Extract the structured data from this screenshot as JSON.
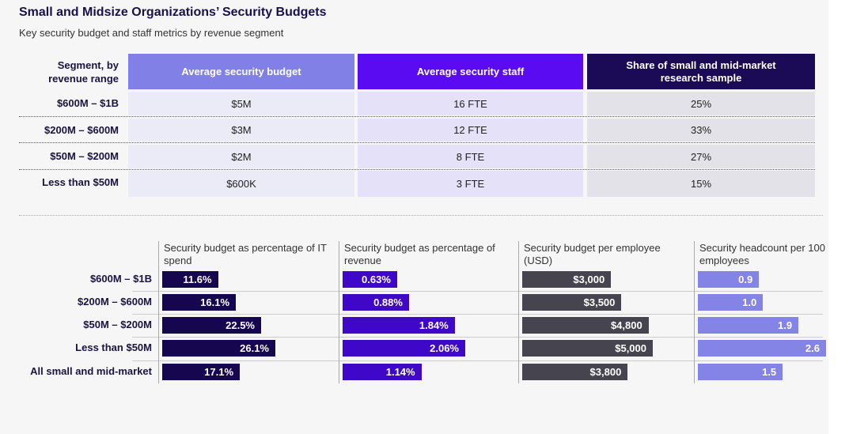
{
  "title": "Small and Midsize Organizations’ Security Budgets",
  "subtitle": "Key security budget and staff metrics by revenue segment",
  "colors": {
    "budget": "#8080e6",
    "staff": "#5a0bf2",
    "share": "#1b0a55",
    "it": "#160650",
    "rev": "#3f08c8",
    "emp": "#46444f",
    "head": "#8484e6"
  },
  "table": {
    "segment_header": "Segment, by revenue range",
    "headers": [
      "Average security budget",
      "Average security staff",
      "Share of small and mid-market research sample"
    ],
    "rows": [
      {
        "segment": "$600M – $1B",
        "budget": "$5M",
        "staff": "16 FTE",
        "share": "25%"
      },
      {
        "segment": "$200M – $600M",
        "budget": "$3M",
        "staff": "12 FTE",
        "share": "33%"
      },
      {
        "segment": "$50M – $200M",
        "budget": "$2M",
        "staff": "8 FTE",
        "share": "27%"
      },
      {
        "segment": "Less than $50M",
        "budget": "$600K",
        "staff": "3 FTE",
        "share": "15%"
      }
    ]
  },
  "chart_data": {
    "type": "bar",
    "orientation": "horizontal",
    "categories": [
      "$600M – $1B",
      "$200M – $600M",
      "$50M – $200M",
      "Less than $50M",
      "All small and mid-market"
    ],
    "series": [
      {
        "name": "Security budget as percentage of IT spend",
        "values": [
          11.6,
          16.1,
          22.5,
          26.1,
          17.1
        ],
        "labels": [
          "11.6%",
          "16.1%",
          "22.5%",
          "26.1%",
          "17.1%"
        ]
      },
      {
        "name": "Security budget as percentage of revenue",
        "values": [
          0.63,
          0.88,
          1.84,
          2.06,
          1.14
        ],
        "labels": [
          "0.63%",
          "0.88%",
          "1.84%",
          "2.06%",
          "1.14%"
        ]
      },
      {
        "name": "Security budget per employee (USD)",
        "values": [
          3000,
          3500,
          4800,
          5000,
          3800
        ],
        "labels": [
          "$3,000",
          "$3,500",
          "$4,800",
          "$5,000",
          "$3,800"
        ]
      },
      {
        "name": "Security headcount per 100 employees",
        "values": [
          0.9,
          1.0,
          1.9,
          2.6,
          1.5
        ],
        "labels": [
          "0.9",
          "1.0",
          "1.9",
          "2.6",
          "1.5"
        ]
      }
    ]
  }
}
